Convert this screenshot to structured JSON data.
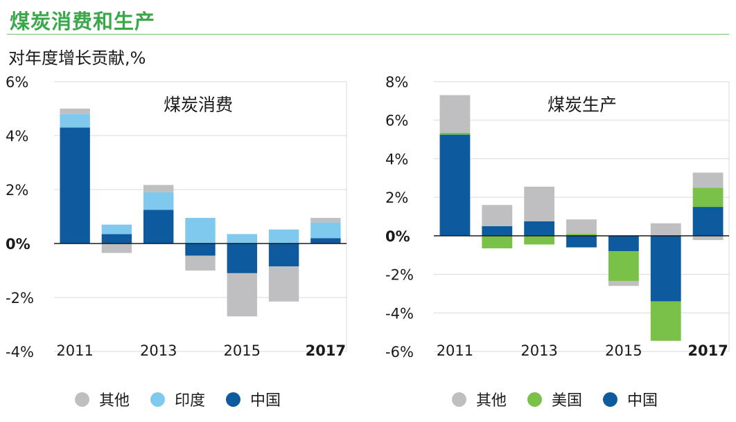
{
  "header": {
    "title": "煤炭消费和生产",
    "subtitle": "对年度增长贡献,%"
  },
  "colors": {
    "other": "#bfbfc1",
    "india": "#7fc8ee",
    "china": "#0d5b9e",
    "usa": "#7ac14a",
    "grid": "#d9d9d9",
    "axis": "#1a1a1a"
  },
  "chart_data": [
    {
      "type": "bar",
      "stacked": true,
      "title": "煤炭消费",
      "categories": [
        "2011",
        "2012",
        "2013",
        "2014",
        "2015",
        "2016",
        "2017"
      ],
      "x_tick_labels": [
        "2011",
        "2013",
        "2015",
        "2017"
      ],
      "bold_tick": "2017",
      "ylim": [
        -4,
        6
      ],
      "yticks": [
        6,
        4,
        2,
        0,
        -2,
        -4
      ],
      "ytick_labels": [
        "6%",
        "4%",
        "2%",
        "0%",
        "-2%",
        "-4%"
      ],
      "series": [
        {
          "name": "中国",
          "key": "china",
          "values": [
            4.3,
            0.35,
            1.25,
            -0.45,
            -1.1,
            -0.85,
            0.2
          ]
        },
        {
          "name": "印度",
          "key": "india",
          "values": [
            0.5,
            0.35,
            0.65,
            0.95,
            0.35,
            0.52,
            0.58
          ]
        },
        {
          "name": "其他",
          "key": "other",
          "values": [
            0.2,
            -0.35,
            0.27,
            -0.55,
            -1.6,
            -1.3,
            0.17
          ]
        }
      ],
      "legend": [
        "其他",
        "印度",
        "中国"
      ]
    },
    {
      "type": "bar",
      "stacked": true,
      "title": "煤炭生产",
      "categories": [
        "2011",
        "2012",
        "2013",
        "2014",
        "2015",
        "2016",
        "2017"
      ],
      "x_tick_labels": [
        "2011",
        "2013",
        "2015",
        "2017"
      ],
      "bold_tick": "2017",
      "ylim": [
        -6,
        8
      ],
      "yticks": [
        8,
        6,
        4,
        2,
        0,
        -2,
        -4,
        -6
      ],
      "ytick_labels": [
        "8%",
        "6%",
        "4%",
        "2%",
        "0%",
        "-2%",
        "-4%",
        "-6%"
      ],
      "series": [
        {
          "name": "中国",
          "key": "china",
          "values": [
            5.25,
            0.5,
            0.75,
            -0.6,
            -0.8,
            -3.4,
            1.5
          ]
        },
        {
          "name": "美国",
          "key": "usa",
          "values": [
            0.1,
            -0.65,
            -0.45,
            0.1,
            -1.55,
            -2.05,
            1.0
          ]
        },
        {
          "name": "其他",
          "key": "other",
          "values": [
            1.95,
            1.1,
            1.8,
            0.75,
            -0.25,
            0.65,
            0.78
          ]
        }
      ],
      "extra_negatives": [
        {
          "category": "2017",
          "key": "other",
          "value": -0.22
        }
      ],
      "legend": [
        "其他",
        "美国",
        "中国"
      ]
    }
  ]
}
